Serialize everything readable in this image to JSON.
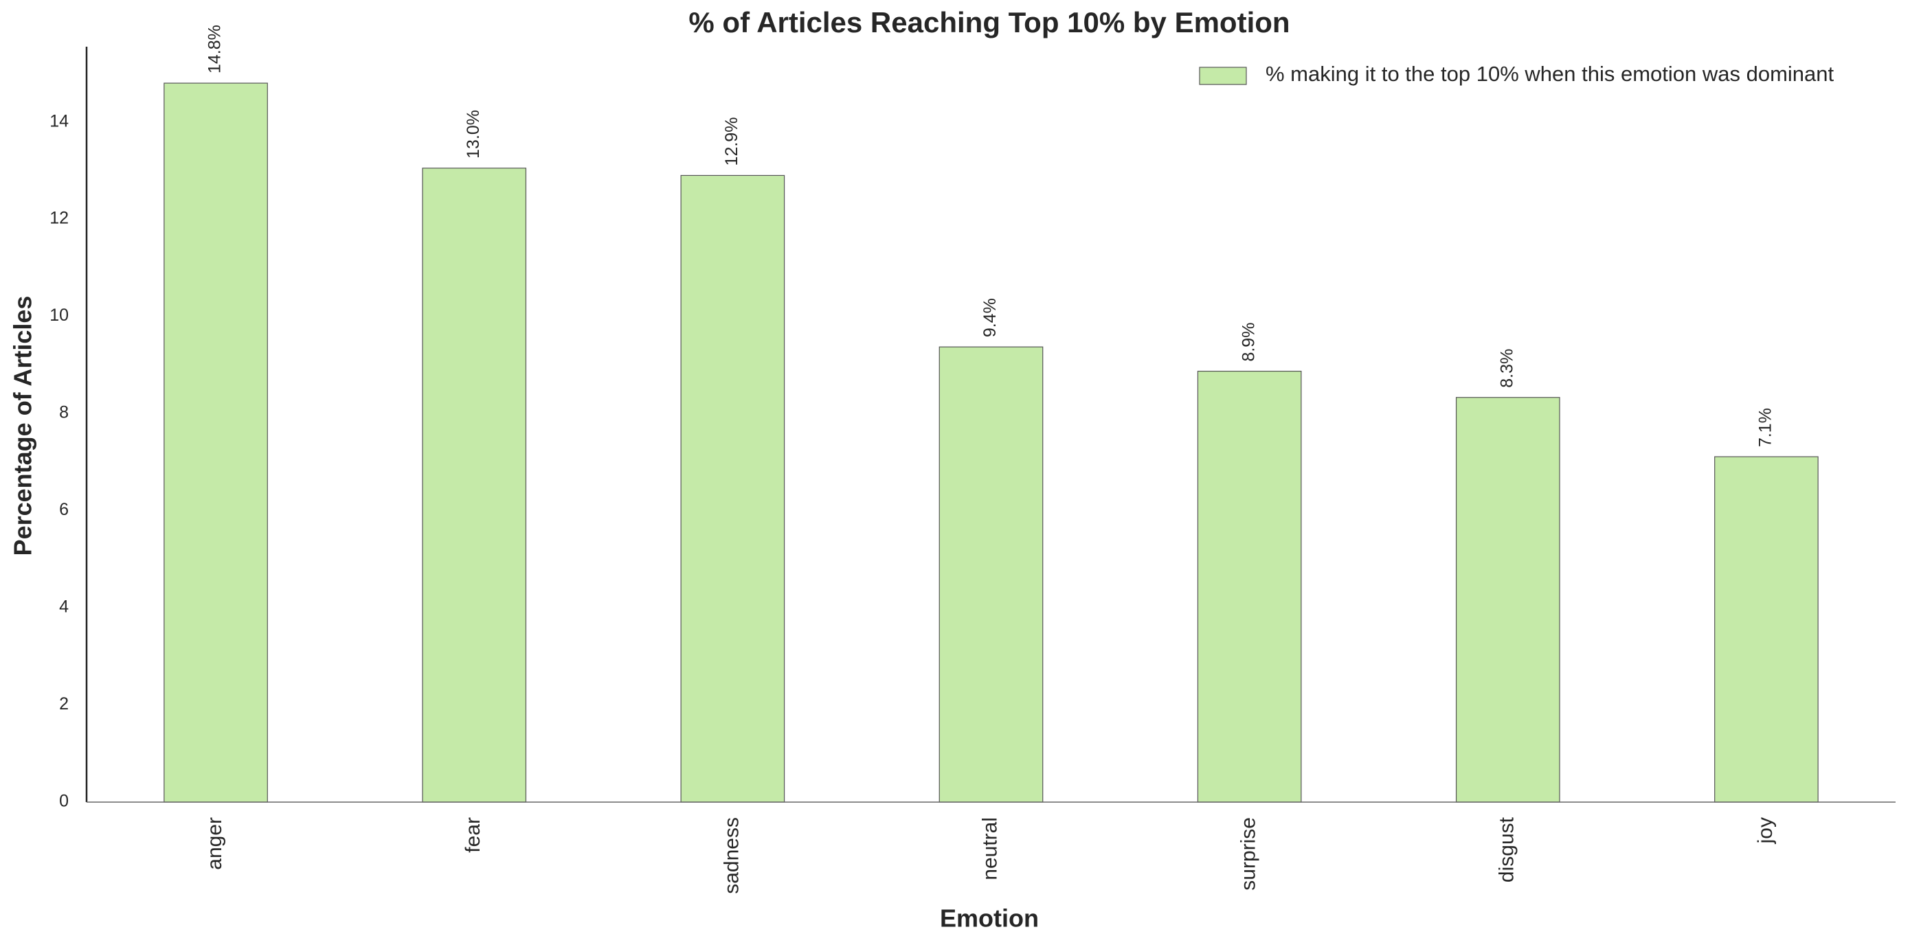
{
  "chart_data": {
    "type": "bar",
    "title": "% of Articles Reaching Top 10% by Emotion",
    "x_label": "Emotion",
    "y_label": "Percentage of Articles",
    "categories": [
      "anger",
      "fear",
      "sadness",
      "neutral",
      "surprise",
      "disgust",
      "joy"
    ],
    "series": [
      {
        "name": "% making it to the top 10% when this emotion was dominant",
        "color": "#c5eaa8",
        "values": [
          14.8,
          13.05,
          12.9,
          9.37,
          8.87,
          8.33,
          7.11
        ],
        "value_labels": [
          "14.8%",
          "13.0%",
          "12.9%",
          "9.4%",
          "8.9%",
          "8.3%",
          "7.1%"
        ]
      }
    ],
    "ylim": [
      0,
      15.55
    ],
    "yticks": [
      0,
      2,
      4,
      6,
      8,
      10,
      12,
      14
    ],
    "grid": false,
    "legend": "upper right"
  }
}
